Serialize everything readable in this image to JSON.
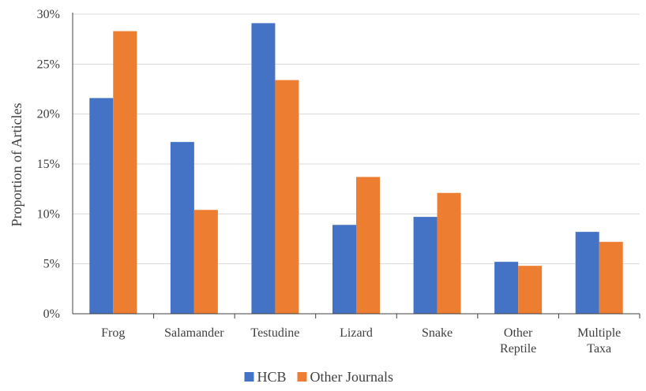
{
  "chart_data": {
    "type": "bar",
    "categories": [
      [
        "Frog"
      ],
      [
        "Salamander"
      ],
      [
        "Testudine"
      ],
      [
        "Lizard"
      ],
      [
        "Snake"
      ],
      [
        "Other",
        "Reptile"
      ],
      [
        "Multiple",
        "Taxa"
      ]
    ],
    "series": [
      {
        "name": "HCB",
        "color": "#4472C4",
        "values": [
          21.6,
          17.2,
          29.1,
          8.9,
          9.7,
          5.2,
          8.2
        ]
      },
      {
        "name": "Other Journals",
        "color": "#ED7D31",
        "values": [
          28.3,
          10.4,
          23.4,
          13.7,
          12.1,
          4.8,
          7.2
        ]
      }
    ],
    "title": "",
    "xlabel": "",
    "ylabel": "Proportion of Articles",
    "ylim": [
      0,
      30
    ],
    "y_ticks": [
      "0%",
      "5%",
      "10%",
      "15%",
      "20%",
      "25%",
      "30%"
    ],
    "grid": true,
    "grid_color": "#d9d9d9",
    "legend_position": "bottom-center"
  }
}
